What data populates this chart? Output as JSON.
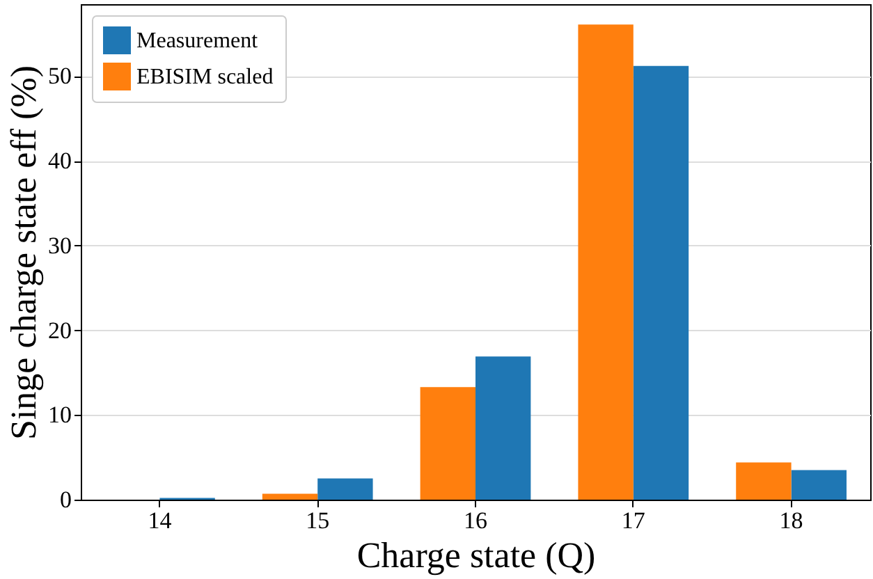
{
  "chart_data": {
    "type": "bar",
    "xlabel": "Charge state (Q)",
    "ylabel": "Singe charge state eff (%)",
    "categories": [
      "14",
      "15",
      "16",
      "17",
      "18"
    ],
    "series": [
      {
        "name": "Measurement",
        "color": "#1f77b4",
        "values": [
          0.2,
          2.5,
          16.9,
          51.2,
          3.5
        ]
      },
      {
        "name": "EBISIM scaled",
        "color": "#ff7f0e",
        "values": [
          0,
          0.7,
          13.3,
          56.1,
          4.4
        ]
      }
    ],
    "ylim": [
      0,
      58.5
    ],
    "yticks": [
      0,
      10,
      20,
      30,
      40,
      50
    ],
    "grid": "y",
    "legend": "top left"
  }
}
